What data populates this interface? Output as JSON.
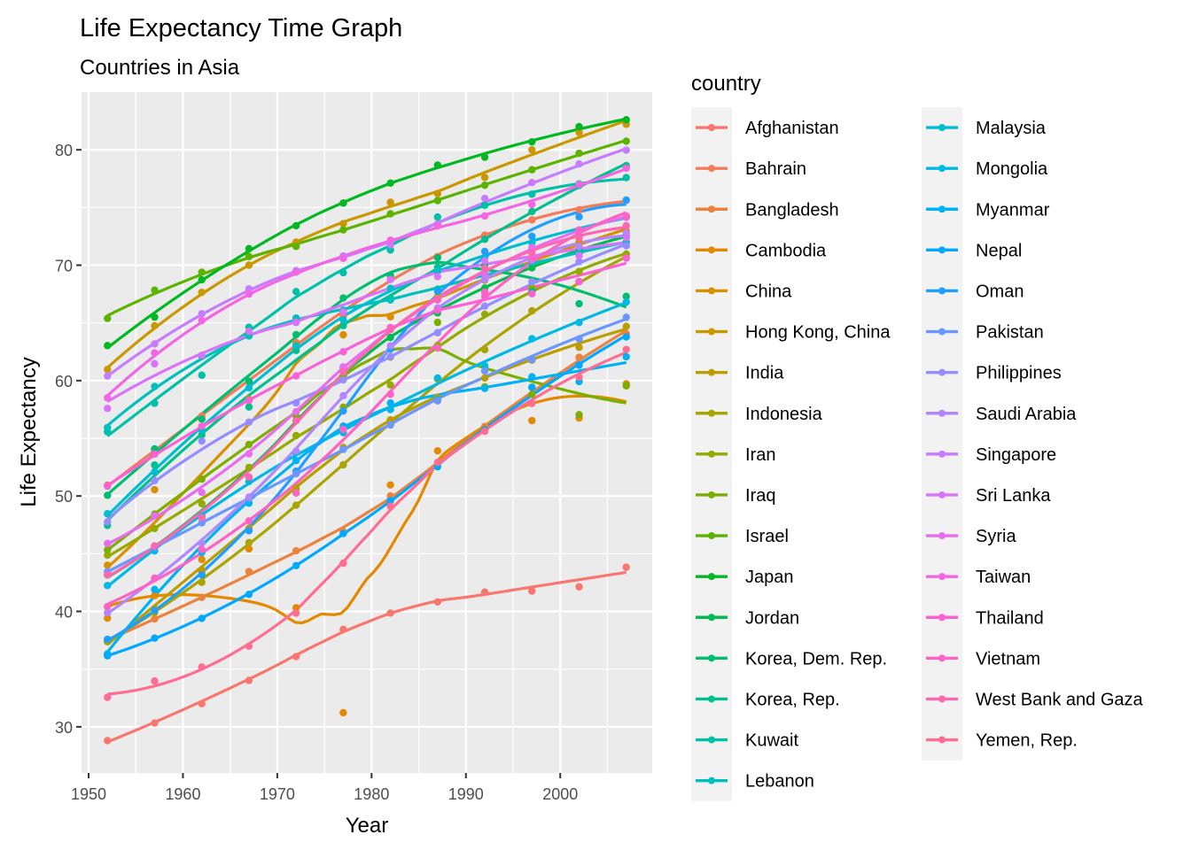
{
  "chart_data": {
    "type": "line",
    "title": "Life Expectancy Time Graph",
    "subtitle": "Countries in Asia",
    "xlabel": "Year",
    "ylabel": "Life Expectancy",
    "xlim": [
      1949.25,
      2009.75
    ],
    "ylim": [
      26.0,
      85.0
    ],
    "x_ticks": [
      1950,
      1960,
      1970,
      1980,
      1990,
      2000
    ],
    "y_ticks": [
      30,
      40,
      50,
      60,
      70,
      80
    ],
    "grid": true,
    "smoothing": "loess",
    "legend": {
      "title": "country",
      "position": "right",
      "columns": 2
    },
    "x": [
      1952,
      1957,
      1962,
      1967,
      1972,
      1977,
      1982,
      1987,
      1992,
      1997,
      2002,
      2007
    ],
    "series": [
      {
        "name": "Afghanistan",
        "color": "#F8766D",
        "values": [
          28.801,
          30.332,
          31.997,
          34.02,
          36.088,
          38.438,
          39.854,
          40.822,
          41.674,
          41.763,
          42.129,
          43.828
        ]
      },
      {
        "name": "Bahrain",
        "color": "#F37B59",
        "values": [
          50.939,
          53.832,
          56.923,
          59.923,
          63.3,
          65.593,
          69.052,
          70.75,
          72.601,
          73.925,
          74.795,
          75.635
        ]
      },
      {
        "name": "Bangladesh",
        "color": "#ED813E",
        "values": [
          37.484,
          39.348,
          41.216,
          43.453,
          45.252,
          46.923,
          50.009,
          52.819,
          56.018,
          59.412,
          62.013,
          64.062
        ]
      },
      {
        "name": "Cambodia",
        "color": "#E38900",
        "values": [
          39.417,
          41.366,
          43.415,
          45.415,
          40.317,
          31.22,
          50.957,
          53.914,
          55.803,
          56.534,
          56.752,
          59.723
        ]
      },
      {
        "name": "China",
        "color": "#D89000",
        "values": [
          44.0,
          50.54896,
          44.50136,
          58.38112,
          63.11888,
          63.96736,
          65.525,
          67.274,
          68.69,
          70.426,
          72.028,
          72.961
        ]
      },
      {
        "name": "Hong Kong, China",
        "color": "#C99800",
        "values": [
          60.96,
          64.75,
          67.65,
          70.0,
          72.0,
          73.6,
          75.45,
          76.2,
          77.601,
          80.0,
          81.495,
          82.208
        ]
      },
      {
        "name": "India",
        "color": "#BB9D00",
        "values": [
          37.373,
          40.249,
          43.605,
          47.193,
          50.651,
          54.208,
          56.596,
          58.553,
          60.223,
          61.765,
          62.879,
          64.698
        ]
      },
      {
        "name": "Indonesia",
        "color": "#A9A400",
        "values": [
          37.468,
          39.918,
          42.518,
          45.964,
          49.203,
          52.702,
          56.159,
          60.137,
          62.681,
          66.041,
          68.588,
          70.65
        ]
      },
      {
        "name": "Iran",
        "color": "#94AA00",
        "values": [
          44.869,
          47.181,
          49.325,
          52.469,
          55.234,
          57.702,
          59.62,
          63.04,
          65.742,
          68.042,
          69.451,
          70.964
        ]
      },
      {
        "name": "Iraq",
        "color": "#7CAE00",
        "values": [
          45.32,
          48.437,
          51.457,
          54.459,
          56.95,
          60.413,
          62.038,
          65.044,
          59.461,
          58.811,
          57.046,
          59.545
        ]
      },
      {
        "name": "Israel",
        "color": "#5BB300",
        "values": [
          65.39,
          67.84,
          69.39,
          70.75,
          71.63,
          73.06,
          74.45,
          75.6,
          76.93,
          78.269,
          79.696,
          80.745
        ]
      },
      {
        "name": "Japan",
        "color": "#00B81F",
        "values": [
          63.03,
          65.5,
          68.73,
          71.43,
          73.42,
          75.38,
          77.11,
          78.67,
          79.36,
          80.69,
          82.0,
          82.603
        ]
      },
      {
        "name": "Jordan",
        "color": "#00BB4E",
        "values": [
          43.158,
          45.669,
          48.126,
          51.629,
          56.528,
          61.134,
          63.739,
          65.869,
          68.015,
          69.772,
          71.263,
          72.535
        ]
      },
      {
        "name": "Korea, Dem. Rep.",
        "color": "#00BE70",
        "values": [
          50.056,
          54.081,
          56.656,
          59.942,
          63.983,
          67.159,
          69.1,
          70.647,
          69.978,
          67.727,
          66.662,
          67.297
        ]
      },
      {
        "name": "Korea, Rep.",
        "color": "#00C08D",
        "values": [
          47.453,
          52.681,
          55.292,
          57.716,
          62.612,
          64.766,
          67.123,
          69.81,
          72.244,
          74.647,
          77.045,
          78.623
        ]
      },
      {
        "name": "Kuwait",
        "color": "#00C1A7",
        "values": [
          55.565,
          58.033,
          60.47,
          64.624,
          67.712,
          69.343,
          71.309,
          74.174,
          75.19,
          76.156,
          76.904,
          77.588
        ]
      },
      {
        "name": "Lebanon",
        "color": "#00C0BE",
        "values": [
          55.928,
          59.489,
          62.094,
          63.87,
          65.421,
          66.099,
          66.983,
          67.926,
          69.292,
          70.265,
          71.028,
          71.993
        ]
      },
      {
        "name": "Malaysia",
        "color": "#00BDD2",
        "values": [
          48.463,
          52.102,
          55.737,
          59.371,
          63.01,
          65.256,
          68.0,
          69.5,
          70.693,
          71.938,
          73.044,
          74.241
        ]
      },
      {
        "name": "Mongolia",
        "color": "#00B8E4",
        "values": [
          42.244,
          45.248,
          48.251,
          51.253,
          53.754,
          55.491,
          57.489,
          60.222,
          61.271,
          63.625,
          65.033,
          66.803
        ]
      },
      {
        "name": "Myanmar",
        "color": "#00B2F3",
        "values": [
          36.319,
          41.905,
          45.108,
          49.379,
          53.07,
          56.059,
          58.056,
          58.339,
          59.32,
          60.328,
          59.908,
          62.069
        ]
      },
      {
        "name": "Nepal",
        "color": "#00A9FF",
        "values": [
          36.157,
          37.686,
          39.393,
          41.472,
          43.971,
          46.748,
          49.594,
          52.537,
          55.727,
          59.426,
          61.34,
          63.785
        ]
      },
      {
        "name": "Oman",
        "color": "#1E9FFF",
        "values": [
          37.578,
          40.08,
          43.165,
          46.988,
          52.143,
          57.367,
          62.728,
          67.734,
          71.197,
          72.499,
          74.193,
          75.64
        ]
      },
      {
        "name": "Pakistan",
        "color": "#6B96FF",
        "values": [
          43.436,
          45.557,
          47.67,
          49.8,
          51.929,
          54.043,
          56.158,
          58.245,
          60.838,
          61.818,
          63.61,
          65.483
        ]
      },
      {
        "name": "Philippines",
        "color": "#948CFF",
        "values": [
          47.752,
          51.334,
          54.757,
          56.393,
          58.065,
          60.06,
          62.082,
          64.151,
          66.458,
          68.564,
          70.303,
          71.688
        ]
      },
      {
        "name": "Saudi Arabia",
        "color": "#B186FF",
        "values": [
          39.875,
          42.868,
          45.914,
          49.901,
          53.886,
          58.69,
          63.012,
          66.295,
          68.768,
          70.533,
          71.626,
          72.777
        ]
      },
      {
        "name": "Singapore",
        "color": "#C77CFF",
        "values": [
          60.396,
          63.179,
          65.798,
          67.946,
          69.521,
          70.795,
          71.76,
          73.56,
          75.788,
          77.158,
          78.77,
          79.972
        ]
      },
      {
        "name": "Sri Lanka",
        "color": "#D974FA",
        "values": [
          57.593,
          61.456,
          62.192,
          64.266,
          65.042,
          65.949,
          68.757,
          69.011,
          70.379,
          70.457,
          70.815,
          72.396
        ]
      },
      {
        "name": "Syria",
        "color": "#E86CF0",
        "values": [
          45.883,
          48.284,
          50.305,
          53.655,
          57.296,
          61.195,
          64.59,
          66.974,
          69.249,
          71.527,
          73.053,
          74.143
        ]
      },
      {
        "name": "Taiwan",
        "color": "#F365E5",
        "values": [
          58.5,
          62.4,
          65.2,
          67.5,
          69.39,
          70.59,
          72.16,
          73.4,
          74.26,
          75.25,
          76.99,
          78.4
        ]
      },
      {
        "name": "Thailand",
        "color": "#FB61D7",
        "values": [
          50.848,
          53.63,
          56.061,
          58.285,
          60.405,
          62.494,
          64.597,
          66.084,
          67.298,
          67.521,
          68.564,
          70.616
        ]
      },
      {
        "name": "Vietnam",
        "color": "#FF62C5",
        "values": [
          40.412,
          42.887,
          45.363,
          47.838,
          50.254,
          55.764,
          58.816,
          62.82,
          67.662,
          70.672,
          73.017,
          74.249
        ]
      },
      {
        "name": "West Bank and Gaza",
        "color": "#FF66B0",
        "values": [
          43.16,
          45.671,
          48.127,
          51.631,
          56.532,
          60.765,
          64.406,
          67.046,
          69.718,
          71.096,
          72.37,
          73.422
        ]
      },
      {
        "name": "Yemen, Rep.",
        "color": "#FF6C94",
        "values": [
          32.548,
          33.97,
          35.18,
          36.984,
          39.848,
          44.175,
          49.113,
          52.922,
          55.599,
          58.02,
          60.308,
          62.698
        ]
      }
    ]
  }
}
